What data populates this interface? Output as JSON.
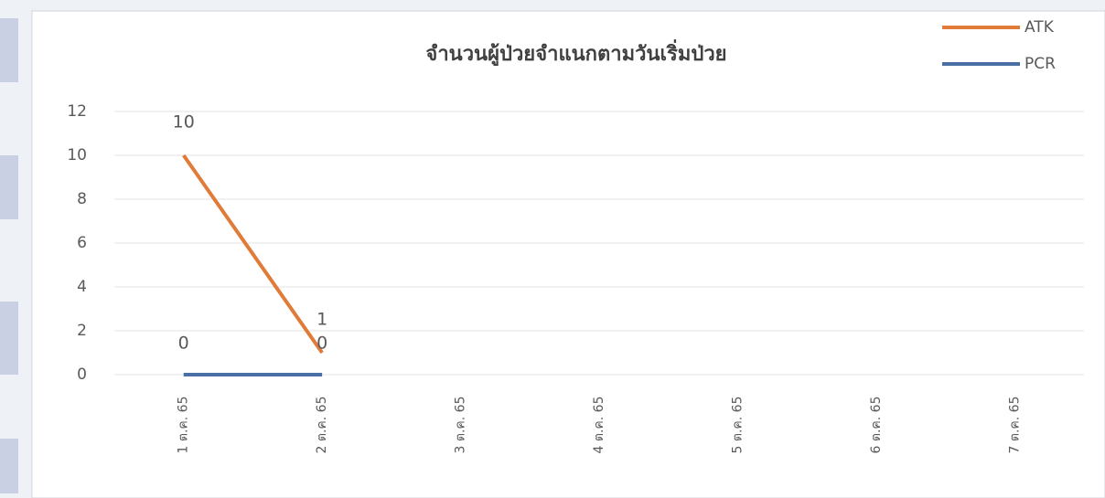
{
  "chart_data": {
    "type": "line",
    "title": "จำนวนผู้ป่วยจำแนกตามวันเริ่มป่วย",
    "categories": [
      "1 ต.ค. 65",
      "2 ต.ค. 65",
      "3 ต.ค. 65",
      "4 ต.ค. 65",
      "5 ต.ค. 65",
      "6 ต.ค. 65",
      "7 ต.ค. 65"
    ],
    "series": [
      {
        "name": "ATK",
        "color": "#e07b39",
        "values": [
          10,
          1,
          null,
          null,
          null,
          null,
          null
        ]
      },
      {
        "name": "PCR",
        "color": "#4a6fa5",
        "values": [
          0,
          0,
          null,
          null,
          null,
          null,
          null
        ]
      }
    ],
    "ylim": [
      0,
      12
    ],
    "yticks": [
      0,
      2,
      4,
      6,
      8,
      10,
      12
    ],
    "grid": true,
    "legend": "top-right"
  }
}
